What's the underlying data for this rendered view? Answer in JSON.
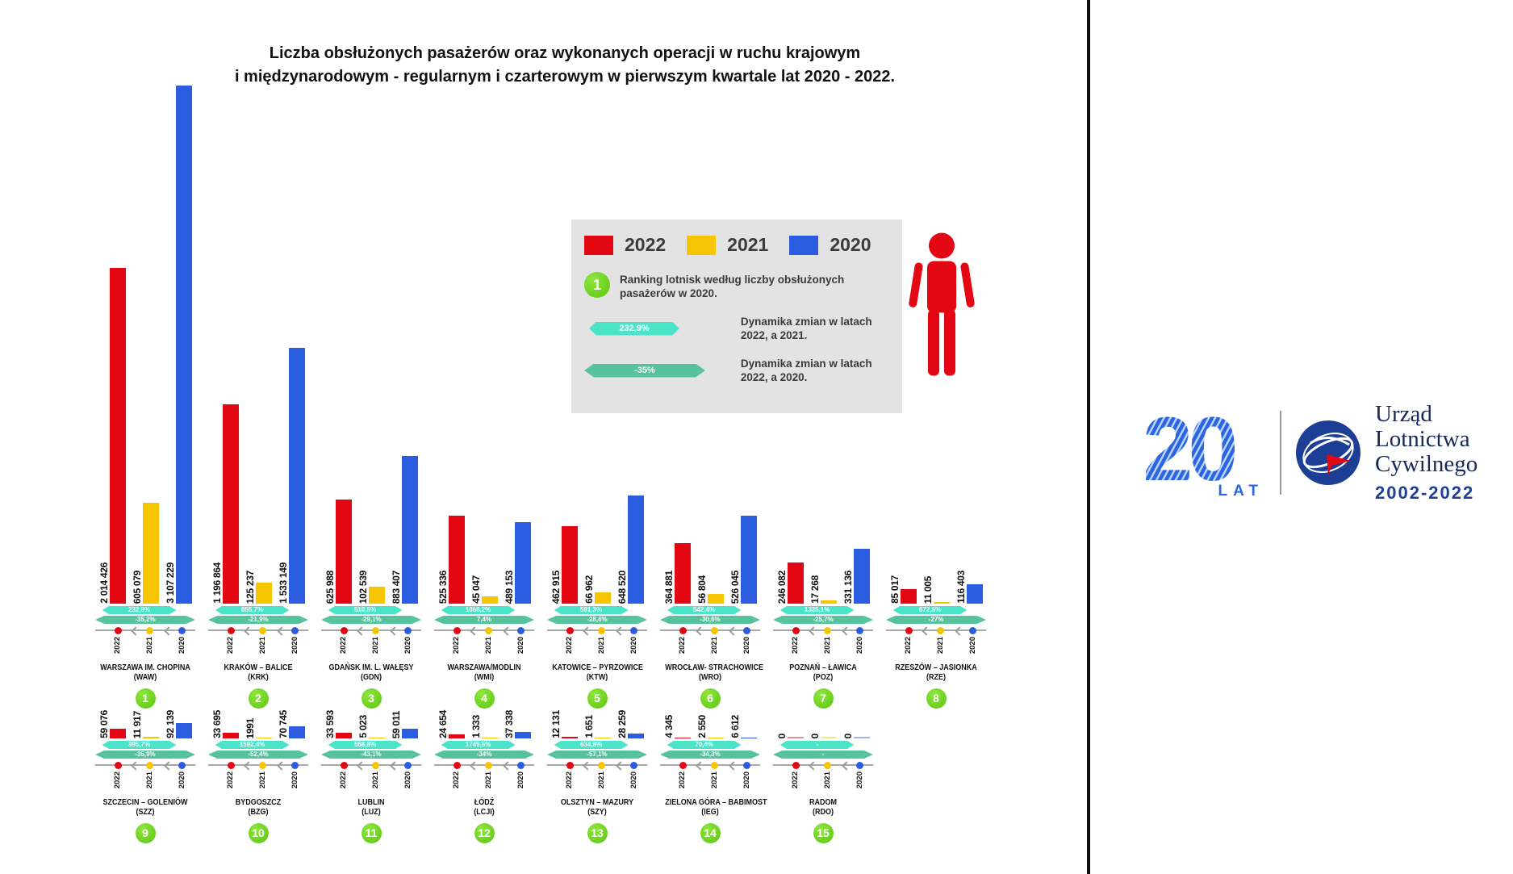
{
  "title": {
    "line1": "Liczba obsłużonych pasażerów oraz wykonanych operacji w ruchu krajowym",
    "line2": "i międzynarodowym - regularnym i czarterowym w pierwszym kwartale lat 2020 - 2022."
  },
  "legend": {
    "years": [
      {
        "label": "2022",
        "color": "#e30613"
      },
      {
        "label": "2021",
        "color": "#f6c500"
      },
      {
        "label": "2020",
        "color": "#2b5de0"
      }
    ],
    "rank_note": {
      "badge": "1",
      "text": "Ranking lotnisk według liczby obsłużonych pasażerów w 2020."
    },
    "arrow_vs_2021": {
      "value": "232,9%",
      "color": "#4ce4c8",
      "text": "Dynamika zmian w latach 2022, a 2021."
    },
    "arrow_vs_2020": {
      "value": "-35%",
      "color": "#57c29e",
      "text": "Dynamika zmian w latach 2022, a 2020."
    }
  },
  "colors": {
    "bar_2022": "#e30613",
    "bar_2021": "#f6c500",
    "bar_2020": "#2b5de0",
    "arrow_light": "#4ce4c8",
    "arrow_dark": "#57c29e",
    "rank_green": "#72d321",
    "person_red": "#e30613",
    "brand_blue": "#2b66e0",
    "brand_navy": "#18285e"
  },
  "branding": {
    "twenty": "20",
    "lat": "LAT",
    "org_line1": "Urząd",
    "org_line2": "Lotnictwa",
    "org_line3": "Cywilnego",
    "years_range": "2002-2022"
  },
  "chart_data": {
    "type": "bar",
    "title": "Liczba obsłużonych pasażerów w pierwszym kwartale lat 2020 - 2022",
    "series_years": [
      "2022",
      "2021",
      "2020"
    ],
    "legend_position": "top",
    "grid": false,
    "airports": [
      {
        "rank": 1,
        "name": "WARSZAWA IM. CHOPINA",
        "code": "(WAW)",
        "values": [
          2014426,
          605079,
          3107229
        ],
        "labels": [
          "2 014 426",
          "605 079",
          "3 107 229"
        ],
        "change_vs_2021": "232,9%",
        "change_vs_2020": "-35,2%"
      },
      {
        "rank": 2,
        "name": "KRAKÓW – BALICE",
        "code": "(KRK)",
        "values": [
          1196864,
          125237,
          1533149
        ],
        "labels": [
          "1 196 864",
          "125 237",
          "1 533 149"
        ],
        "change_vs_2021": "855,7%",
        "change_vs_2020": "-21,9%"
      },
      {
        "rank": 3,
        "name": "GDAŃSK IM. L. WAŁĘSY",
        "code": "(GDN)",
        "values": [
          625988,
          102539,
          883407
        ],
        "labels": [
          "625 988",
          "102 539",
          "883 407"
        ],
        "change_vs_2021": "510,5%",
        "change_vs_2020": "-29,1%"
      },
      {
        "rank": 4,
        "name": "WARSZAWA/MODLIN",
        "code": "(WMI)",
        "values": [
          525336,
          45047,
          489153
        ],
        "labels": [
          "525 336",
          "45 047",
          "489 153"
        ],
        "change_vs_2021": "1066,2%",
        "change_vs_2020": "7,4%"
      },
      {
        "rank": 5,
        "name": "KATOWICE – PYRZOWICE",
        "code": "(KTW)",
        "values": [
          462915,
          66962,
          648520
        ],
        "labels": [
          "462 915",
          "66 962",
          "648 520"
        ],
        "change_vs_2021": "591,3%",
        "change_vs_2020": "-28,6%"
      },
      {
        "rank": 6,
        "name": "WROCŁAW- STRACHOWICE",
        "code": "(WRO)",
        "values": [
          364881,
          56804,
          526045
        ],
        "labels": [
          "364 881",
          "56 804",
          "526 045"
        ],
        "change_vs_2021": "542,4%",
        "change_vs_2020": "-30,6%"
      },
      {
        "rank": 7,
        "name": "POZNAŃ – ŁAWICA",
        "code": "(POZ)",
        "values": [
          246082,
          17268,
          331136
        ],
        "labels": [
          "246 082",
          "17 268",
          "331 136"
        ],
        "change_vs_2021": "1325,1%",
        "change_vs_2020": "-25,7%"
      },
      {
        "rank": 8,
        "name": "RZESZÓW – JASIONKA",
        "code": "(RZE)",
        "values": [
          85017,
          11005,
          116403
        ],
        "labels": [
          "85 017",
          "11 005",
          "116 403"
        ],
        "change_vs_2021": "672,5%",
        "change_vs_2020": "-27%"
      },
      {
        "rank": 9,
        "name": "SZCZECIN – GOLENIÓW",
        "code": "(SZZ)",
        "values": [
          59076,
          11917,
          92139
        ],
        "labels": [
          "59 076",
          "11 917",
          "92 139"
        ],
        "change_vs_2021": "395,7%",
        "change_vs_2020": "-35,9%"
      },
      {
        "rank": 10,
        "name": "BYDGOSZCZ",
        "code": "(BZG)",
        "values": [
          33695,
          1991,
          70745
        ],
        "labels": [
          "33 695",
          "1991",
          "70 745"
        ],
        "change_vs_2021": "1592,4%",
        "change_vs_2020": "-52,4%"
      },
      {
        "rank": 11,
        "name": "LUBLIN",
        "code": "(LUZ)",
        "values": [
          33593,
          5023,
          59011
        ],
        "labels": [
          "33 593",
          "5 023",
          "59 011"
        ],
        "change_vs_2021": "568,8%",
        "change_vs_2020": "-43,1%"
      },
      {
        "rank": 12,
        "name": "ŁÓDŹ",
        "code": "(LCJI)",
        "values": [
          24654,
          1333,
          37338
        ],
        "labels": [
          "24 654",
          "1 333",
          "37 338"
        ],
        "change_vs_2021": "1749,5%",
        "change_vs_2020": "-34%"
      },
      {
        "rank": 13,
        "name": "OLSZTYN – MAZURY",
        "code": "(SZY)",
        "values": [
          12131,
          1651,
          28259
        ],
        "labels": [
          "12 131",
          "1 651",
          "28 259"
        ],
        "change_vs_2021": "634,8%",
        "change_vs_2020": "-57,1%"
      },
      {
        "rank": 14,
        "name": "ZIELONA GÓRA – BABIMOST",
        "code": "(IEG)",
        "values": [
          4345,
          2550,
          6612
        ],
        "labels": [
          "4 345",
          "2 550",
          "6 612"
        ],
        "change_vs_2021": "70,4%",
        "change_vs_2020": "-34,3%"
      },
      {
        "rank": 15,
        "name": "RADOM",
        "code": "(RDO)",
        "values": [
          0,
          0,
          0
        ],
        "labels": [
          "0",
          "0",
          "0"
        ],
        "change_vs_2021": "-",
        "change_vs_2020": "-"
      }
    ]
  }
}
